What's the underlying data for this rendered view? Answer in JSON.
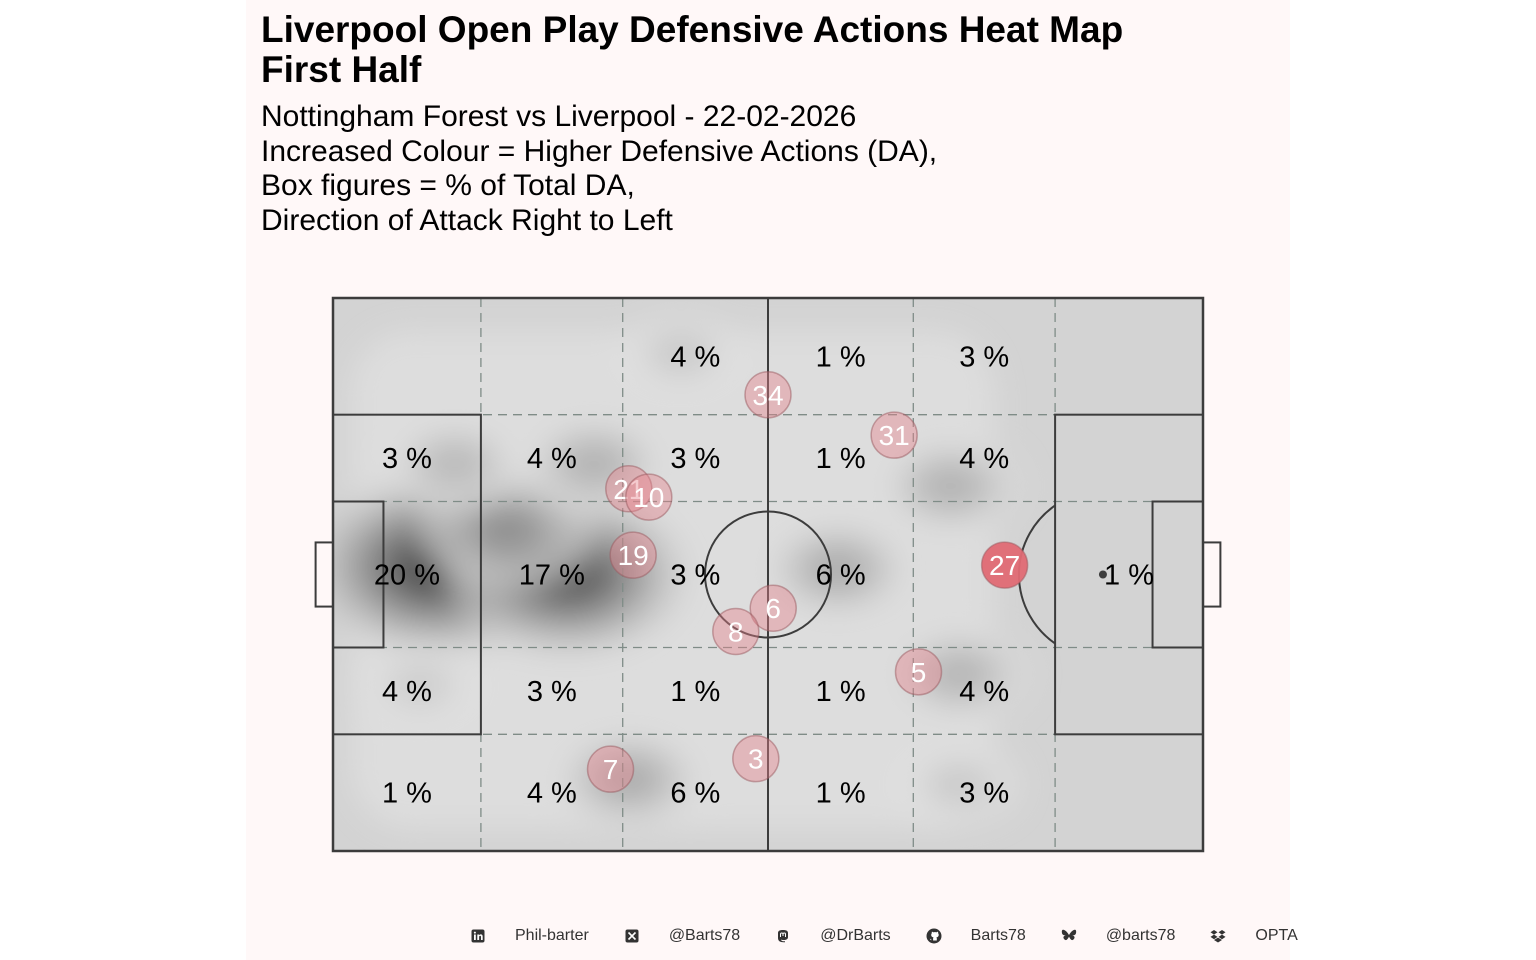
{
  "title": "Liverpool  Open Play Defensive Actions Heat Map\nFirst Half",
  "subtitle_lines": [
    "Nottingham Forest vs Liverpool - 22-02-2026",
    "Increased Colour = Higher Defensive Actions (DA),",
    "Box figures = % of Total DA,",
    "Direction of Attack Right to Left"
  ],
  "colors": {
    "panel_bg": "#fff8f8",
    "pitch_fill": "#d3d3d3",
    "pitch_line": "#3c3c3c",
    "zone_line": "#7f8c87",
    "player_marker": "#e8848c",
    "player_marker_highlight": "#e06a74",
    "player_label": "#ffffff"
  },
  "chart_data": {
    "type": "heatmap",
    "title": "Liverpool  Open Play Defensive Actions Heat Map",
    "x_zone_edges": [
      0,
      17,
      33.3,
      50,
      66.7,
      83,
      100
    ],
    "y_zone_edges": [
      0,
      21.1,
      36.8,
      63.2,
      78.9,
      100
    ],
    "zone_percentages": [
      [
        "",
        "",
        "4 %",
        "1 %",
        "3 %",
        ""
      ],
      [
        "3 %",
        "4 %",
        "3 %",
        "1 %",
        "4 %",
        ""
      ],
      [
        "20 %",
        "17 %",
        "3 %",
        "6 %",
        "",
        "1 %"
      ],
      [
        "4 %",
        "3 %",
        "1 %",
        "1 %",
        "4 %",
        ""
      ],
      [
        "1 %",
        "4 %",
        "6 %",
        "1 %",
        "3 %",
        ""
      ]
    ],
    "density_hotspots": [
      {
        "x": 12,
        "y": 48.5,
        "intensity": 1.0
      },
      {
        "x": 27,
        "y": 50,
        "intensity": 0.9
      },
      {
        "x": 20,
        "y": 42,
        "intensity": 0.55
      },
      {
        "x": 30,
        "y": 30,
        "intensity": 0.35
      },
      {
        "x": 14,
        "y": 30,
        "intensity": 0.3
      },
      {
        "x": 58,
        "y": 49,
        "intensity": 0.38
      },
      {
        "x": 71,
        "y": 34,
        "intensity": 0.35
      },
      {
        "x": 72,
        "y": 68,
        "intensity": 0.33
      },
      {
        "x": 34,
        "y": 87,
        "intensity": 0.38
      },
      {
        "x": 40,
        "y": 10,
        "intensity": 0.2
      },
      {
        "x": 72,
        "y": 88,
        "intensity": 0.2
      },
      {
        "x": 10,
        "y": 70,
        "intensity": 0.18
      }
    ],
    "players": [
      {
        "label": "34",
        "x": 50,
        "y": 17.5,
        "highlight": false
      },
      {
        "label": "31",
        "x": 64.5,
        "y": 24.8,
        "highlight": false
      },
      {
        "label": "21",
        "x": 34,
        "y": 34.5,
        "highlight": false
      },
      {
        "label": "10",
        "x": 36.3,
        "y": 36,
        "highlight": false
      },
      {
        "label": "19",
        "x": 34.5,
        "y": 46.5,
        "highlight": false
      },
      {
        "label": "27",
        "x": 77.2,
        "y": 48.3,
        "highlight": true
      },
      {
        "label": "6",
        "x": 50.6,
        "y": 56.1,
        "highlight": false
      },
      {
        "label": "8",
        "x": 46.3,
        "y": 60.3,
        "highlight": false
      },
      {
        "label": "5",
        "x": 67.3,
        "y": 67.6,
        "highlight": false
      },
      {
        "label": "3",
        "x": 48.6,
        "y": 83.3,
        "highlight": false
      },
      {
        "label": "7",
        "x": 31.9,
        "y": 85.2,
        "highlight": false
      }
    ]
  },
  "footer": [
    {
      "icon": "linkedin-icon",
      "text": "Phil-barter"
    },
    {
      "icon": "x-twitter-icon",
      "text": "@Barts78"
    },
    {
      "icon": "mastodon-icon",
      "text": "@DrBarts"
    },
    {
      "icon": "github-icon",
      "text": "Barts78"
    },
    {
      "icon": "bluesky-icon",
      "text": "@barts78"
    },
    {
      "icon": "dropbox-icon",
      "text": "OPTA"
    }
  ]
}
